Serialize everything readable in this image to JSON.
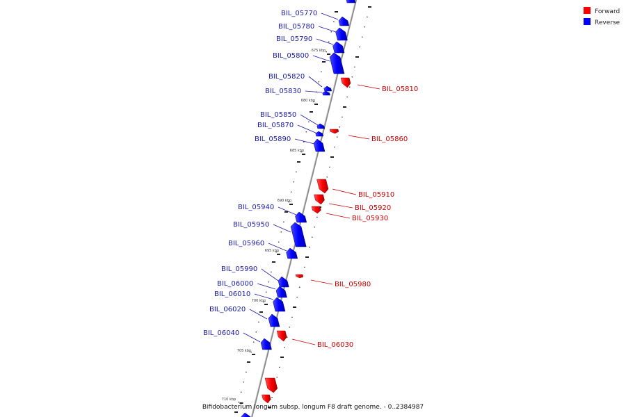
{
  "caption": "Bifidobacterium longum subsp. longum F8 draft genome. - 0..2384987",
  "legend": [
    {
      "label": "Forward",
      "color": "#ff0000"
    },
    {
      "label": "Reverse",
      "color": "#0000ff"
    }
  ],
  "kbp_labels": [
    "675 kbp",
    "680 kbp",
    "685 kbp",
    "690 kbp",
    "695 kbp",
    "700 kbp",
    "705 kbp",
    "710 kbp"
  ],
  "genes": [
    {
      "name": "BIL_05770",
      "strand": "reverse"
    },
    {
      "name": "BIL_05780",
      "strand": "reverse"
    },
    {
      "name": "BIL_05790",
      "strand": "reverse"
    },
    {
      "name": "BIL_05800",
      "strand": "reverse"
    },
    {
      "name": "BIL_05810",
      "strand": "forward"
    },
    {
      "name": "BIL_05820",
      "strand": "reverse"
    },
    {
      "name": "BIL_05830",
      "strand": "reverse"
    },
    {
      "name": "BIL_05850",
      "strand": "reverse"
    },
    {
      "name": "BIL_05860",
      "strand": "forward"
    },
    {
      "name": "BIL_05870",
      "strand": "reverse"
    },
    {
      "name": "BIL_05890",
      "strand": "reverse"
    },
    {
      "name": "BIL_05910",
      "strand": "forward"
    },
    {
      "name": "BIL_05920",
      "strand": "forward"
    },
    {
      "name": "BIL_05930",
      "strand": "forward"
    },
    {
      "name": "BIL_05940",
      "strand": "reverse"
    },
    {
      "name": "BIL_05950",
      "strand": "reverse"
    },
    {
      "name": "BIL_05960",
      "strand": "reverse"
    },
    {
      "name": "BIL_05980",
      "strand": "forward"
    },
    {
      "name": "BIL_05990",
      "strand": "reverse"
    },
    {
      "name": "BIL_06000",
      "strand": "reverse"
    },
    {
      "name": "BIL_06010",
      "strand": "reverse"
    },
    {
      "name": "BIL_06020",
      "strand": "reverse"
    },
    {
      "name": "BIL_06030",
      "strand": "forward"
    },
    {
      "name": "BIL_06040",
      "strand": "reverse"
    }
  ]
}
